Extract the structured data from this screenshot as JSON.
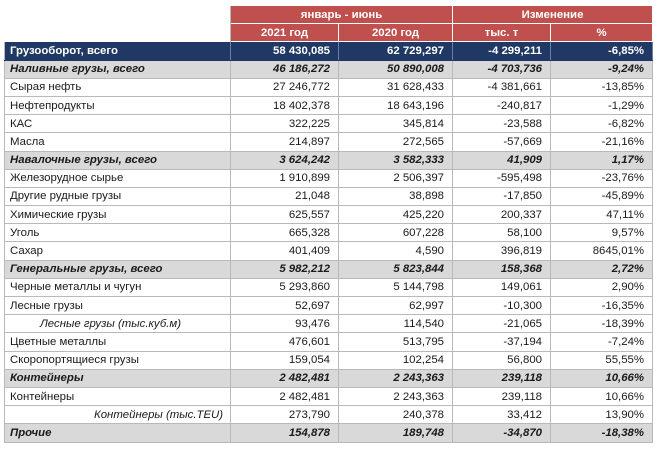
{
  "header": {
    "period_label": "январь - июнь",
    "change_label": "Изменение",
    "col_2021": "2021 год",
    "col_2020": "2020 год",
    "col_abs": "тыс. т",
    "col_pct": "%"
  },
  "rows": [
    {
      "label": "Грузооборот, всего",
      "y2021": "58 430,085",
      "y2020": "62 729,297",
      "abs": "-4 299,211",
      "pct": "-6,85%"
    },
    {
      "label": "Наливные грузы, всего",
      "y2021": "46 186,272",
      "y2020": "50 890,008",
      "abs": "-4 703,736",
      "pct": "-9,24%"
    },
    {
      "label": "Сырая нефть",
      "y2021": "27 246,772",
      "y2020": "31 628,433",
      "abs": "-4 381,661",
      "pct": "-13,85%"
    },
    {
      "label": "Нефтепродукты",
      "y2021": "18 402,378",
      "y2020": "18 643,196",
      "abs": "-240,817",
      "pct": "-1,29%"
    },
    {
      "label": "КАС",
      "y2021": "322,225",
      "y2020": "345,814",
      "abs": "-23,588",
      "pct": "-6,82%"
    },
    {
      "label": "Масла",
      "y2021": "214,897",
      "y2020": "272,565",
      "abs": "-57,669",
      "pct": "-21,16%"
    },
    {
      "label": "Навалочные грузы, всего",
      "y2021": "3 624,242",
      "y2020": "3 582,333",
      "abs": "41,909",
      "pct": "1,17%"
    },
    {
      "label": "Железорудное сырье",
      "y2021": "1 910,899",
      "y2020": "2 506,397",
      "abs": "-595,498",
      "pct": "-23,76%"
    },
    {
      "label": "Другие рудные грузы",
      "y2021": "21,048",
      "y2020": "38,898",
      "abs": "-17,850",
      "pct": "-45,89%"
    },
    {
      "label": "Химические грузы",
      "y2021": "625,557",
      "y2020": "425,220",
      "abs": "200,337",
      "pct": "47,11%"
    },
    {
      "label": "Уголь",
      "y2021": "665,328",
      "y2020": "607,228",
      "abs": "58,100",
      "pct": "9,57%"
    },
    {
      "label": "Сахар",
      "y2021": "401,409",
      "y2020": "4,590",
      "abs": "396,819",
      "pct": "8645,01%"
    },
    {
      "label": "Генеральные грузы, всего",
      "y2021": "5 982,212",
      "y2020": "5 823,844",
      "abs": "158,368",
      "pct": "2,72%"
    },
    {
      "label": "Черные металлы и чугун",
      "y2021": "5 293,860",
      "y2020": "5 144,798",
      "abs": "149,061",
      "pct": "2,90%"
    },
    {
      "label": "Лесные грузы",
      "y2021": "52,697",
      "y2020": "62,997",
      "abs": "-10,300",
      "pct": "-16,35%"
    },
    {
      "label": "Лесные грузы (тыс.куб.м)",
      "y2021": "93,476",
      "y2020": "114,540",
      "abs": "-21,065",
      "pct": "-18,39%"
    },
    {
      "label": "Цветные металлы",
      "y2021": "476,601",
      "y2020": "513,795",
      "abs": "-37,194",
      "pct": "-7,24%"
    },
    {
      "label": "Скоропортящиеся грузы",
      "y2021": "159,054",
      "y2020": "102,254",
      "abs": "56,800",
      "pct": "55,55%"
    },
    {
      "label": "Контейнеры",
      "y2021": "2 482,481",
      "y2020": "2 243,363",
      "abs": "239,118",
      "pct": "10,66%"
    },
    {
      "label": "Контейнеры",
      "y2021": "2 482,481",
      "y2020": "2 243,363",
      "abs": "239,118",
      "pct": "10,66%"
    },
    {
      "label": "Контейнеры (тыс.TEU)",
      "y2021": "273,790",
      "y2020": "240,378",
      "abs": "33,412",
      "pct": "13,90%"
    },
    {
      "label": "Прочие",
      "y2021": "154,878",
      "y2020": "189,748",
      "abs": "-34,870",
      "pct": "-18,38%"
    }
  ],
  "colors": {
    "header_bg": "#c0504d",
    "total_bg": "#1f3864",
    "group_bg": "#d9d9d9"
  }
}
